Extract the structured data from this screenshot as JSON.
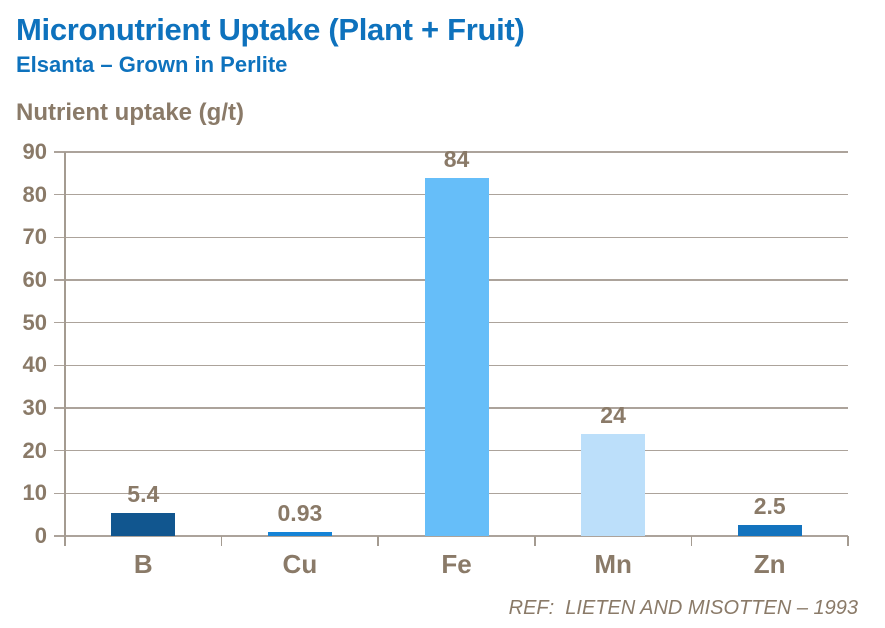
{
  "header": {
    "title": "Micronutrient Uptake (Plant + Fruit)",
    "subtitle": "Elsanta – Grown in Perlite"
  },
  "chart_data": {
    "type": "bar",
    "title": "Micronutrient Uptake (Plant + Fruit)",
    "subtitle": "Elsanta – Grown in Perlite",
    "axis_title": "Nutrient uptake (g/t)",
    "xlabel": "",
    "ylabel": "Nutrient uptake (g/t)",
    "categories": [
      "B",
      "Cu",
      "Fe",
      "Mn",
      "Zn"
    ],
    "values": [
      5.4,
      0.93,
      84,
      24,
      2.5
    ],
    "value_labels": [
      "5.4",
      "0.93",
      "84",
      "24",
      "2.5"
    ],
    "bar_colors": [
      "#11568F",
      "#1583D6",
      "#66BEF9",
      "#BCDFFA",
      "#1373BE"
    ],
    "ylim": [
      0,
      90
    ],
    "yticks": [
      0,
      10,
      20,
      30,
      40,
      50,
      60,
      70,
      80,
      90
    ],
    "grid": true,
    "legend_position": "none"
  },
  "footer": {
    "ref": "REF:  LIETEN AND MISOTTEN – 1993"
  },
  "colors": {
    "heading": "#0E72BD",
    "text": "#8A7A68",
    "gridline": "#ACA39B",
    "axis": "#A49B91",
    "background": "#FFFFFF"
  }
}
